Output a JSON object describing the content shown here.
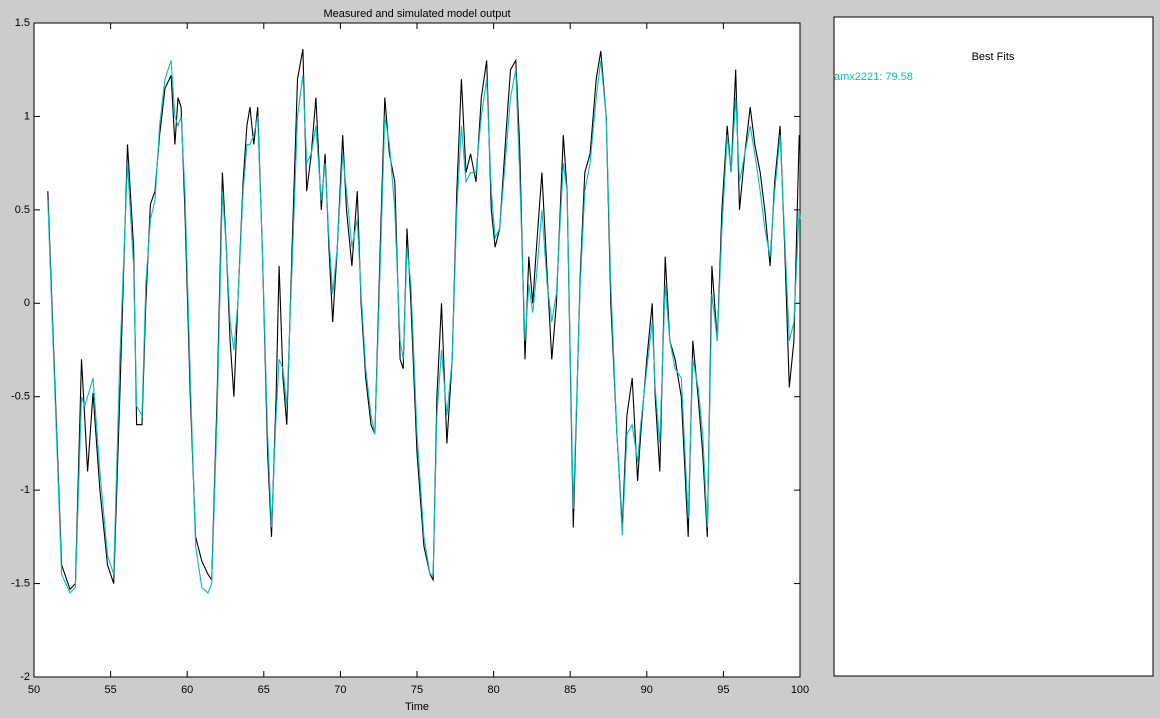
{
  "chart_data": {
    "type": "line",
    "title": "Measured and simulated model output",
    "x_label": "Time",
    "x": [
      50.9,
      51.8,
      52.35,
      52.7,
      53.1,
      53.3,
      53.5,
      53.85,
      54.3,
      54.8,
      55.2,
      55.6,
      56.1,
      56.5,
      56.7,
      57.05,
      57.3,
      57.6,
      57.9,
      58.2,
      58.55,
      58.95,
      59.2,
      59.4,
      59.6,
      59.85,
      60.2,
      60.55,
      60.95,
      61.35,
      61.6,
      61.95,
      62.3,
      62.55,
      62.8,
      63.05,
      63.3,
      63.65,
      63.9,
      64.1,
      64.35,
      64.6,
      64.9,
      65.25,
      65.5,
      65.8,
      66.0,
      66.25,
      66.5,
      66.85,
      67.2,
      67.55,
      67.8,
      68.1,
      68.4,
      68.75,
      69.0,
      69.25,
      69.5,
      69.8,
      70.15,
      70.4,
      70.75,
      71.1,
      71.35,
      71.65,
      72.0,
      72.25,
      72.6,
      72.9,
      73.2,
      73.55,
      73.9,
      74.1,
      74.35,
      74.6,
      75.0,
      75.45,
      75.85,
      76.05,
      76.3,
      76.6,
      76.95,
      77.3,
      77.6,
      77.9,
      78.2,
      78.5,
      78.85,
      79.2,
      79.55,
      79.85,
      80.1,
      80.4,
      80.8,
      81.1,
      81.45,
      81.7,
      82.05,
      82.3,
      82.55,
      82.8,
      83.15,
      83.5,
      83.8,
      84.1,
      84.55,
      84.8,
      85.2,
      85.65,
      85.95,
      86.3,
      86.7,
      87.0,
      87.35,
      87.65,
      88.05,
      88.4,
      88.7,
      89.05,
      89.4,
      89.6,
      90.0,
      90.35,
      90.55,
      90.85,
      91.2,
      91.5,
      91.85,
      92.25,
      92.7,
      93.0,
      93.35,
      93.65,
      93.95,
      94.25,
      94.6,
      94.9,
      95.25,
      95.5,
      95.8,
      96.05,
      96.4,
      96.75,
      97.05,
      97.4,
      97.7,
      98.05,
      98.35,
      98.7,
      99.0,
      99.3,
      99.6,
      99.95,
      100
    ],
    "series": [
      {
        "color": "#000000",
        "values": [
          0.6,
          -1.4,
          -1.53,
          -1.5,
          -0.3,
          -0.6,
          -0.9,
          -0.48,
          -1.0,
          -1.4,
          -1.5,
          -0.5,
          0.85,
          0.3,
          -0.65,
          -0.65,
          0.0,
          0.53,
          0.6,
          0.9,
          1.15,
          1.22,
          0.85,
          1.1,
          1.05,
          0.5,
          -0.5,
          -1.25,
          -1.38,
          -1.45,
          -1.48,
          -0.5,
          0.7,
          0.3,
          -0.2,
          -0.5,
          0.0,
          0.65,
          0.95,
          1.05,
          0.85,
          1.05,
          0.3,
          -0.8,
          -1.25,
          -0.5,
          0.2,
          -0.4,
          -0.65,
          0.3,
          1.2,
          1.36,
          0.6,
          0.8,
          1.1,
          0.5,
          0.8,
          0.3,
          -0.1,
          0.3,
          0.9,
          0.5,
          0.2,
          0.6,
          0.0,
          -0.4,
          -0.65,
          -0.7,
          0.3,
          1.1,
          0.8,
          0.65,
          -0.3,
          -0.35,
          0.4,
          0.0,
          -0.8,
          -1.3,
          -1.45,
          -1.48,
          -0.5,
          0.0,
          -0.75,
          -0.3,
          0.6,
          1.2,
          0.7,
          0.8,
          0.65,
          1.1,
          1.3,
          0.5,
          0.3,
          0.4,
          0.9,
          1.25,
          1.3,
          0.85,
          -0.3,
          0.25,
          0.0,
          0.3,
          0.7,
          0.15,
          -0.3,
          0.0,
          0.9,
          0.6,
          -1.2,
          0.15,
          0.7,
          0.8,
          1.2,
          1.35,
          1.0,
          0.0,
          -0.7,
          -1.2,
          -0.6,
          -0.4,
          -0.95,
          -0.7,
          -0.3,
          0.0,
          -0.5,
          -0.9,
          0.25,
          -0.2,
          -0.3,
          -0.5,
          -1.25,
          -0.2,
          -0.5,
          -0.8,
          -1.25,
          0.2,
          -0.2,
          0.5,
          0.95,
          0.7,
          1.25,
          0.5,
          0.8,
          1.05,
          0.85,
          0.7,
          0.5,
          0.2,
          0.65,
          0.95,
          0.3,
          -0.45,
          -0.2,
          0.9,
          0.82
        ]
      },
      {
        "color": "#00bfbf",
        "values": [
          0.55,
          -1.45,
          -1.55,
          -1.52,
          -0.5,
          -0.55,
          -0.5,
          -0.4,
          -0.9,
          -1.35,
          -1.45,
          -0.3,
          0.75,
          0.2,
          -0.55,
          -0.6,
          0.1,
          0.45,
          0.55,
          0.95,
          1.2,
          1.3,
          1.0,
          0.95,
          1.0,
          0.6,
          -0.4,
          -1.3,
          -1.52,
          -1.55,
          -1.5,
          -0.6,
          0.6,
          0.3,
          -0.1,
          -0.25,
          0.0,
          0.6,
          0.85,
          0.85,
          0.9,
          1.0,
          0.3,
          -0.7,
          -1.2,
          -0.6,
          -0.3,
          -0.35,
          -0.55,
          0.2,
          1.0,
          1.22,
          0.75,
          0.8,
          0.95,
          0.55,
          0.75,
          0.35,
          0.05,
          0.3,
          0.8,
          0.6,
          0.3,
          0.45,
          0.05,
          -0.35,
          -0.6,
          -0.7,
          0.2,
          1.0,
          0.85,
          0.5,
          -0.2,
          -0.3,
          0.3,
          0.1,
          -0.7,
          -1.25,
          -1.45,
          -1.45,
          -0.6,
          -0.25,
          -0.6,
          -0.3,
          0.5,
          0.95,
          0.65,
          0.7,
          0.7,
          1.0,
          1.2,
          0.6,
          0.35,
          0.4,
          0.8,
          1.1,
          1.25,
          0.7,
          -0.2,
          0.1,
          -0.05,
          0.15,
          0.5,
          0.1,
          -0.1,
          0.05,
          0.75,
          0.6,
          -1.1,
          0.1,
          0.6,
          0.75,
          1.1,
          1.3,
          1.0,
          0.1,
          -0.7,
          -1.24,
          -0.7,
          -0.65,
          -0.85,
          -0.65,
          -0.35,
          -0.1,
          -0.45,
          -0.75,
          0.1,
          -0.2,
          -0.35,
          -0.4,
          -1.15,
          -0.3,
          -0.45,
          -0.7,
          -1.2,
          0.05,
          -0.2,
          0.4,
          0.9,
          0.7,
          1.1,
          0.65,
          0.8,
          0.95,
          0.8,
          0.6,
          0.4,
          0.25,
          0.6,
          0.9,
          0.35,
          -0.2,
          -0.1,
          0.5,
          0.45
        ]
      }
    ],
    "xlim": [
      50,
      100
    ],
    "xticks": [
      50,
      55,
      60,
      65,
      70,
      75,
      80,
      85,
      90,
      95,
      100
    ],
    "ylim": [
      -2,
      1.5
    ],
    "yticks": [
      -2,
      -1.5,
      -1,
      -0.5,
      0,
      0.5,
      1,
      1.5
    ],
    "best_fits": {
      "title": "Best Fits",
      "entries": [
        "amx2221: 79.58"
      ]
    }
  }
}
